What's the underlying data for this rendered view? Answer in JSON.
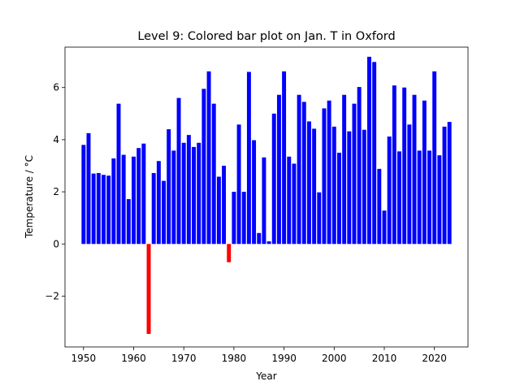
{
  "chart_data": {
    "type": "bar",
    "title": "Level 9: Colored bar plot on Jan. T in Oxford",
    "xlabel": "Year",
    "ylabel": "Temperature / °C",
    "xlim": [
      1946.3,
      2026.7
    ],
    "ylim": [
      -3.95,
      7.55
    ],
    "xticks": [
      1950,
      1960,
      1970,
      1980,
      1990,
      2000,
      2010,
      2020
    ],
    "yticks": [
      -2,
      0,
      2,
      4,
      6
    ],
    "ytick_labels": [
      "−2",
      "0",
      "2",
      "4",
      "6"
    ],
    "positive_color": "#0000ff",
    "negative_color": "#ff0000",
    "x": [
      1950,
      1951,
      1952,
      1953,
      1954,
      1955,
      1956,
      1957,
      1958,
      1959,
      1960,
      1961,
      1962,
      1963,
      1964,
      1965,
      1966,
      1967,
      1968,
      1969,
      1970,
      1971,
      1972,
      1973,
      1974,
      1975,
      1976,
      1977,
      1978,
      1979,
      1980,
      1981,
      1982,
      1983,
      1984,
      1985,
      1986,
      1987,
      1988,
      1989,
      1990,
      1991,
      1992,
      1993,
      1994,
      1995,
      1996,
      1997,
      1998,
      1999,
      2000,
      2001,
      2002,
      2003,
      2004,
      2005,
      2006,
      2007,
      2008,
      2009,
      2010,
      2011,
      2012,
      2013,
      2014,
      2015,
      2016,
      2017,
      2018,
      2019,
      2020,
      2021,
      2022,
      2023
    ],
    "values": [
      3.8,
      4.25,
      2.7,
      2.72,
      2.65,
      2.62,
      3.28,
      5.38,
      3.42,
      1.72,
      3.35,
      3.68,
      3.85,
      -3.45,
      2.72,
      3.18,
      2.42,
      4.4,
      3.58,
      5.6,
      3.88,
      4.18,
      3.72,
      3.88,
      5.95,
      6.62,
      5.38,
      2.58,
      3.0,
      -0.7,
      2.0,
      4.58,
      2.0,
      6.6,
      3.98,
      0.42,
      3.32,
      0.1,
      5.0,
      5.72,
      6.62,
      3.35,
      3.08,
      5.72,
      5.45,
      4.7,
      4.42,
      1.98,
      5.2,
      5.5,
      4.5,
      3.5,
      5.72,
      4.32,
      5.38,
      6.02,
      4.38,
      7.18,
      6.98,
      2.88,
      1.28,
      4.12,
      6.08,
      3.55,
      6.0,
      4.58,
      5.72,
      3.58,
      5.5,
      3.58,
      6.62,
      3.4,
      4.5,
      4.68
    ]
  }
}
